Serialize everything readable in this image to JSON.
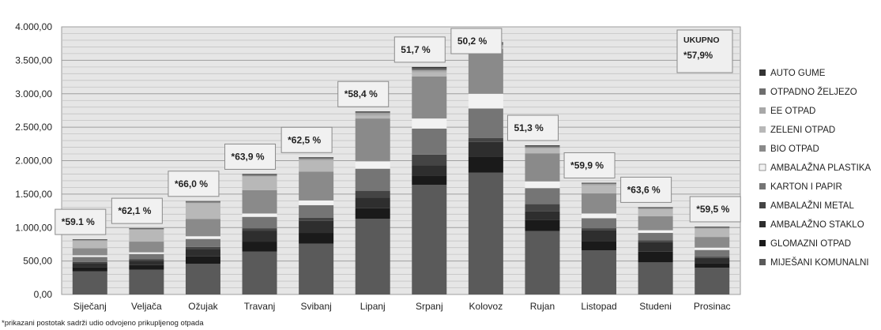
{
  "chart_data": {
    "type": "bar",
    "stacked": true,
    "categories": [
      "Siječanj",
      "Veljača",
      "Ožujak",
      "Travanj",
      "Svibanj",
      "Lipanj",
      "Srpanj",
      "Kolovoz",
      "Rujan",
      "Listopad",
      "Studeni",
      "Prosinac"
    ],
    "ylim": [
      0,
      4000
    ],
    "yticks": [
      "0,00",
      "500,00",
      "1.000,00",
      "1.500,00",
      "2.000,00",
      "2.500,00",
      "3.000,00",
      "3.500,00",
      "4.000,00"
    ],
    "grid": true,
    "legend_position": "right",
    "series": [
      {
        "name": "MIJEŠANI KOMUNALNI",
        "color": "#5a5a5a",
        "values": [
          345,
          370,
          460,
          640,
          760,
          1130,
          1640,
          1820,
          950,
          660,
          480,
          400
        ]
      },
      {
        "name": "GLOMAZNI OTPAD",
        "color": "#1a1a1a",
        "values": [
          65,
          70,
          110,
          150,
          160,
          160,
          140,
          240,
          160,
          140,
          160,
          70
        ]
      },
      {
        "name": "AMBALAŽNO STAKLO",
        "color": "#2e2e2e",
        "values": [
          60,
          65,
          110,
          160,
          180,
          160,
          150,
          220,
          130,
          160,
          140,
          75
        ]
      },
      {
        "name": "AMBALAŽNI METAL",
        "color": "#444444",
        "values": [
          15,
          20,
          30,
          40,
          45,
          100,
          160,
          60,
          110,
          30,
          30,
          20
        ]
      },
      {
        "name": "KARTON I PAPIR",
        "color": "#757575",
        "values": [
          75,
          80,
          120,
          170,
          190,
          330,
          390,
          440,
          240,
          150,
          110,
          100
        ]
      },
      {
        "name": "AMBALAŽNA PLASTIKA",
        "color": "#f2f2f2",
        "values": [
          25,
          25,
          40,
          50,
          70,
          110,
          150,
          220,
          100,
          70,
          40,
          35
        ]
      },
      {
        "name": "BIO OTPAD",
        "color": "#8a8a8a",
        "values": [
          105,
          160,
          260,
          350,
          430,
          640,
          630,
          670,
          420,
          300,
          210,
          160
        ]
      },
      {
        "name": "ZELENI OTPAD",
        "color": "#b8b8b8",
        "values": [
          110,
          175,
          230,
          200,
          170,
          40,
          60,
          30,
          70,
          120,
          100,
          120
        ]
      },
      {
        "name": "EE OTPAD",
        "color": "#a8a8a8",
        "values": [
          10,
          10,
          15,
          15,
          20,
          40,
          30,
          30,
          20,
          20,
          15,
          15
        ]
      },
      {
        "name": "OTPADNO ŽELJEZO",
        "color": "#6e6e6e",
        "values": [
          10,
          10,
          15,
          15,
          15,
          15,
          30,
          30,
          20,
          15,
          15,
          15
        ]
      },
      {
        "name": "AUTO GUME",
        "color": "#333333",
        "values": [
          5,
          5,
          5,
          10,
          10,
          10,
          20,
          10,
          10,
          5,
          5,
          5
        ]
      }
    ],
    "annotations": [
      {
        "text": "*59.1 %"
      },
      {
        "text": "*62,1 %"
      },
      {
        "text": "*66,0 %"
      },
      {
        "text": "*63,9 %"
      },
      {
        "text": "*62,5 %"
      },
      {
        "text": "*58,4 %"
      },
      {
        "text": "51,7 %"
      },
      {
        "text": "50,2 %"
      },
      {
        "text": "51,3 %"
      },
      {
        "text": "*59,9 %"
      },
      {
        "text": "*63,6 %"
      },
      {
        "text": "*59,5 %"
      }
    ],
    "total": {
      "label": "UKUPNO",
      "value": "*57,9%"
    },
    "footnote": "*prikazani postotak sadrži udio odvojeno prikupljenog otpada"
  }
}
